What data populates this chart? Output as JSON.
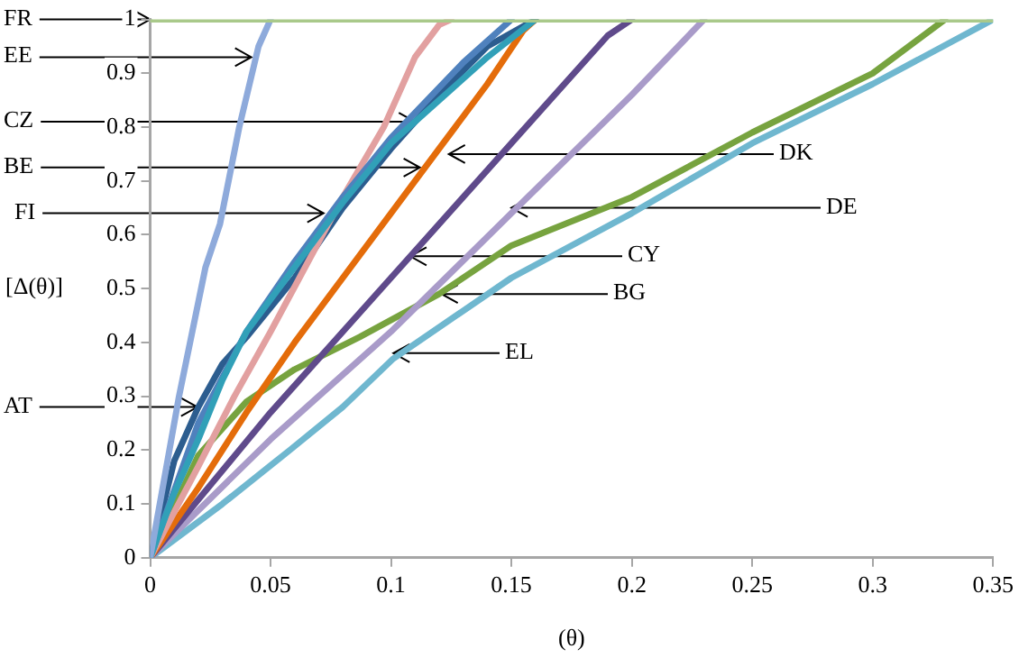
{
  "chart_data": {
    "type": "line",
    "xlabel": "(θ)",
    "ylabel": "[Δ(θ)]",
    "xlim": [
      0,
      0.35
    ],
    "xticks": [
      0,
      0.05,
      0.1,
      0.15,
      0.2,
      0.25,
      0.3,
      0.35
    ],
    "ylim": [
      0,
      1
    ],
    "yticks": [
      0,
      0.1,
      0.2,
      0.3,
      0.4,
      0.5,
      0.6,
      0.7,
      0.8,
      0.9,
      1
    ],
    "grid": false,
    "legend": false,
    "marker": "none",
    "line_style": "solid",
    "annotations": [
      {
        "text": "FR",
        "x": 0,
        "y": 1
      },
      {
        "text": "EE",
        "x": 0.042,
        "y": 0.93
      },
      {
        "text": "CZ",
        "x": 0.11,
        "y": 0.81
      },
      {
        "text": "BE",
        "x": 0.112,
        "y": 0.725
      },
      {
        "text": "FI",
        "x": 0.072,
        "y": 0.64
      },
      {
        "text": "AT",
        "x": 0.0196,
        "y": 0.28
      },
      {
        "text": "DK",
        "x": 0.124,
        "y": 0.75
      },
      {
        "text": "DE",
        "x": 0.15,
        "y": 0.65
      },
      {
        "text": "CY",
        "x": 0.108,
        "y": 0.56
      },
      {
        "text": "BG",
        "x": 0.121,
        "y": 0.49
      },
      {
        "text": "EL",
        "x": 0.101,
        "y": 0.38
      }
    ],
    "series": [
      {
        "color": "#a9c98a",
        "x": [
          0,
          0.35
        ],
        "values": [
          1,
          1
        ]
      },
      {
        "color": "#8eaadb",
        "x": [
          0,
          0.012,
          0.023,
          0.029,
          0.037,
          0.045,
          0.05
        ],
        "values": [
          0,
          0.3,
          0.54,
          0.62,
          0.8,
          0.95,
          1
        ]
      },
      {
        "color": "#31a0b8",
        "x": [
          0,
          0.01,
          0.02,
          0.03,
          0.04,
          0.06,
          0.08,
          0.1,
          0.12,
          0.14,
          0.16
        ],
        "values": [
          0,
          0.12,
          0.22,
          0.33,
          0.42,
          0.54,
          0.66,
          0.77,
          0.85,
          0.93,
          1
        ]
      },
      {
        "color": "#4f81bd",
        "x": [
          0,
          0.02,
          0.04,
          0.06,
          0.08,
          0.1,
          0.13,
          0.15
        ],
        "values": [
          0,
          0.25,
          0.42,
          0.55,
          0.67,
          0.78,
          0.92,
          1
        ]
      },
      {
        "color": "#e2a0a0",
        "x": [
          0,
          0.02,
          0.035,
          0.05,
          0.062,
          0.08,
          0.097,
          0.11,
          0.12,
          0.125
        ],
        "values": [
          0,
          0.17,
          0.3,
          0.42,
          0.52,
          0.67,
          0.8,
          0.93,
          0.99,
          1
        ]
      },
      {
        "color": "#2c5d8f",
        "x": [
          0,
          0.01,
          0.02,
          0.03,
          0.04,
          0.06,
          0.08,
          0.1,
          0.12,
          0.14,
          0.16
        ],
        "values": [
          0,
          0.18,
          0.28,
          0.36,
          0.41,
          0.52,
          0.65,
          0.76,
          0.86,
          0.95,
          1
        ]
      },
      {
        "color": "#e46c0a",
        "x": [
          0,
          0.02,
          0.04,
          0.06,
          0.08,
          0.1,
          0.12,
          0.14,
          0.155,
          0.16
        ],
        "values": [
          0,
          0.13,
          0.27,
          0.4,
          0.52,
          0.64,
          0.76,
          0.88,
          0.98,
          1
        ]
      },
      {
        "color": "#5f4a8b",
        "x": [
          0,
          0.05,
          0.1,
          0.15,
          0.19,
          0.2
        ],
        "values": [
          0,
          0.27,
          0.52,
          0.77,
          0.97,
          1
        ]
      },
      {
        "color": "#a99bc9",
        "x": [
          0,
          0.05,
          0.1,
          0.15,
          0.2,
          0.23
        ],
        "values": [
          0,
          0.22,
          0.42,
          0.64,
          0.86,
          1
        ]
      },
      {
        "color": "#77a33f",
        "x": [
          0,
          0.02,
          0.04,
          0.06,
          0.087,
          0.12,
          0.15,
          0.2,
          0.25,
          0.3,
          0.33
        ],
        "values": [
          0,
          0.19,
          0.29,
          0.35,
          0.41,
          0.49,
          0.58,
          0.67,
          0.79,
          0.9,
          1
        ]
      },
      {
        "color": "#6fb7cf",
        "x": [
          0,
          0.03,
          0.058,
          0.08,
          0.101,
          0.15,
          0.2,
          0.25,
          0.3,
          0.35
        ],
        "values": [
          0,
          0.1,
          0.2,
          0.28,
          0.37,
          0.52,
          0.64,
          0.77,
          0.88,
          1
        ]
      }
    ]
  }
}
